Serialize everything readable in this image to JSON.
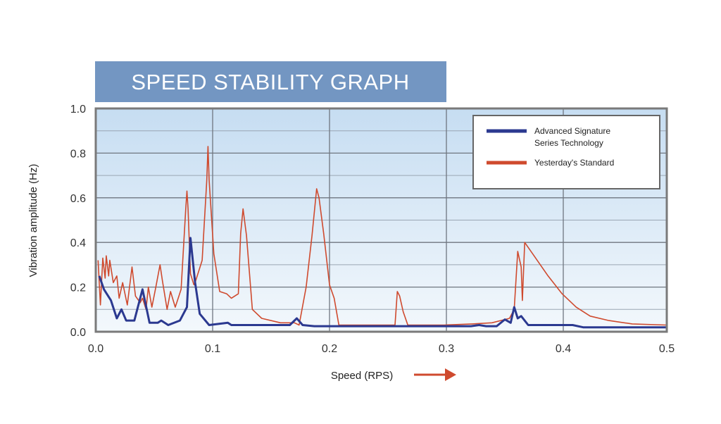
{
  "chart_data": {
    "type": "line",
    "title": "SPEED STABILITY GRAPH",
    "xlabel": "Speed (RPS)",
    "ylabel": "Vibration amplitude (Hz)",
    "xlim": [
      0,
      0.5
    ],
    "ylim": [
      0,
      1.0
    ],
    "xticks": [
      "0.0",
      "0.1",
      "0.2",
      "0.3",
      "0.4",
      "0.5"
    ],
    "yticks": [
      "0.0",
      "0.2",
      "0.4",
      "0.6",
      "0.8",
      "1.0"
    ],
    "grid": true,
    "legend_position": "top-right",
    "series": [
      {
        "name": "Advanced Signature Series Technology",
        "color": "#2b3990",
        "points": [
          [
            0.003,
            0.25
          ],
          [
            0.007,
            0.19
          ],
          [
            0.013,
            0.14
          ],
          [
            0.018,
            0.06
          ],
          [
            0.022,
            0.1
          ],
          [
            0.026,
            0.05
          ],
          [
            0.033,
            0.05
          ],
          [
            0.04,
            0.19
          ],
          [
            0.046,
            0.04
          ],
          [
            0.053,
            0.04
          ],
          [
            0.056,
            0.05
          ],
          [
            0.062,
            0.03
          ],
          [
            0.072,
            0.05
          ],
          [
            0.078,
            0.11
          ],
          [
            0.081,
            0.42
          ],
          [
            0.085,
            0.22
          ],
          [
            0.089,
            0.08
          ],
          [
            0.097,
            0.03
          ],
          [
            0.113,
            0.04
          ],
          [
            0.116,
            0.03
          ],
          [
            0.166,
            0.03
          ],
          [
            0.172,
            0.06
          ],
          [
            0.177,
            0.03
          ],
          [
            0.187,
            0.025
          ],
          [
            0.305,
            0.025
          ],
          [
            0.321,
            0.025
          ],
          [
            0.328,
            0.03
          ],
          [
            0.334,
            0.025
          ],
          [
            0.343,
            0.025
          ],
          [
            0.35,
            0.055
          ],
          [
            0.355,
            0.04
          ],
          [
            0.358,
            0.11
          ],
          [
            0.361,
            0.06
          ],
          [
            0.364,
            0.07
          ],
          [
            0.37,
            0.03
          ],
          [
            0.408,
            0.03
          ],
          [
            0.417,
            0.02
          ],
          [
            0.488,
            0.02
          ]
        ]
      },
      {
        "name": "Yesterday's Standard",
        "color": "#cf4a2e",
        "points": [
          [
            0.002,
            0.32
          ],
          [
            0.004,
            0.12
          ],
          [
            0.006,
            0.33
          ],
          [
            0.008,
            0.24
          ],
          [
            0.009,
            0.34
          ],
          [
            0.011,
            0.25
          ],
          [
            0.012,
            0.32
          ],
          [
            0.015,
            0.22
          ],
          [
            0.018,
            0.25
          ],
          [
            0.02,
            0.15
          ],
          [
            0.023,
            0.22
          ],
          [
            0.027,
            0.12
          ],
          [
            0.031,
            0.29
          ],
          [
            0.034,
            0.16
          ],
          [
            0.038,
            0.13
          ],
          [
            0.04,
            0.15
          ],
          [
            0.043,
            0.1
          ],
          [
            0.045,
            0.2
          ],
          [
            0.048,
            0.11
          ],
          [
            0.051,
            0.19
          ],
          [
            0.055,
            0.3
          ],
          [
            0.057,
            0.23
          ],
          [
            0.061,
            0.1
          ],
          [
            0.064,
            0.18
          ],
          [
            0.068,
            0.11
          ],
          [
            0.073,
            0.19
          ],
          [
            0.077,
            0.55
          ],
          [
            0.078,
            0.63
          ],
          [
            0.079,
            0.55
          ],
          [
            0.081,
            0.26
          ],
          [
            0.084,
            0.21
          ],
          [
            0.085,
            0.22
          ],
          [
            0.091,
            0.32
          ],
          [
            0.095,
            0.68
          ],
          [
            0.096,
            0.83
          ],
          [
            0.097,
            0.68
          ],
          [
            0.101,
            0.35
          ],
          [
            0.106,
            0.18
          ],
          [
            0.112,
            0.17
          ],
          [
            0.116,
            0.15
          ],
          [
            0.122,
            0.17
          ],
          [
            0.124,
            0.44
          ],
          [
            0.126,
            0.55
          ],
          [
            0.129,
            0.43
          ],
          [
            0.134,
            0.1
          ],
          [
            0.142,
            0.06
          ],
          [
            0.158,
            0.04
          ],
          [
            0.17,
            0.04
          ],
          [
            0.174,
            0.03
          ],
          [
            0.18,
            0.2
          ],
          [
            0.185,
            0.43
          ],
          [
            0.189,
            0.64
          ],
          [
            0.191,
            0.6
          ],
          [
            0.195,
            0.44
          ],
          [
            0.2,
            0.21
          ],
          [
            0.204,
            0.15
          ],
          [
            0.208,
            0.03
          ],
          [
            0.212,
            0.03
          ],
          [
            0.256,
            0.03
          ],
          [
            0.258,
            0.18
          ],
          [
            0.26,
            0.16
          ],
          [
            0.263,
            0.09
          ],
          [
            0.267,
            0.03
          ],
          [
            0.284,
            0.03
          ],
          [
            0.298,
            0.03
          ],
          [
            0.322,
            0.035
          ],
          [
            0.339,
            0.04
          ],
          [
            0.354,
            0.06
          ],
          [
            0.358,
            0.1
          ],
          [
            0.361,
            0.36
          ],
          [
            0.364,
            0.29
          ],
          [
            0.365,
            0.14
          ],
          [
            0.367,
            0.4
          ],
          [
            0.375,
            0.34
          ],
          [
            0.387,
            0.25
          ],
          [
            0.399,
            0.17
          ],
          [
            0.411,
            0.11
          ],
          [
            0.423,
            0.07
          ],
          [
            0.439,
            0.05
          ],
          [
            0.459,
            0.035
          ],
          [
            0.488,
            0.03
          ]
        ]
      }
    ],
    "legend": [
      "Advanced Signature",
      "Series Technology",
      "Yesterday's Standard"
    ]
  }
}
